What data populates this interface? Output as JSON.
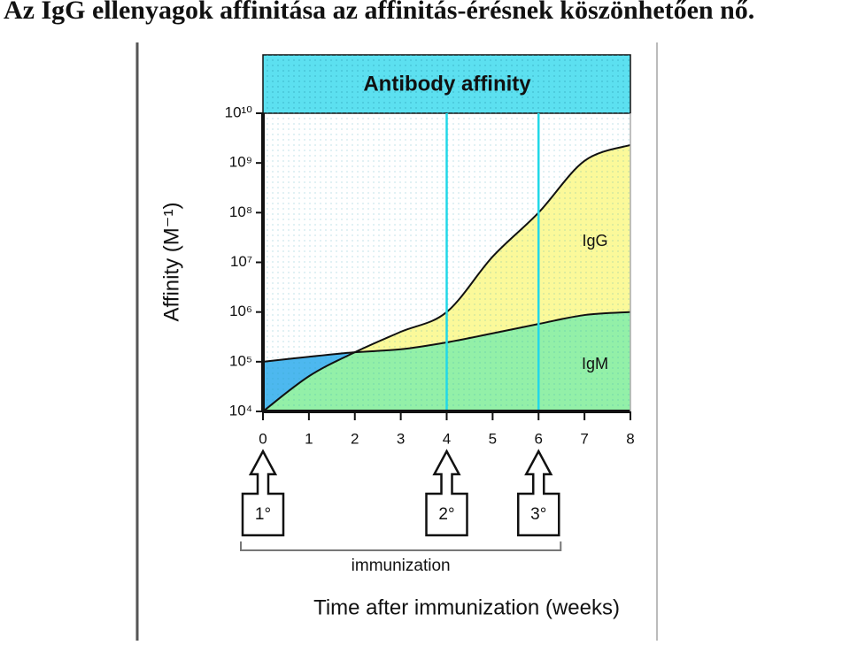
{
  "page_title": "Az IgG ellenyagok affinitása az affinitás-érésnek köszönhetően nő.",
  "chart_data": {
    "type": "area",
    "title": "Antibody affinity",
    "y_label": "Affinity (M⁻¹)",
    "x_label": "Time after immunization (weeks)",
    "x": [
      0,
      1,
      2,
      3,
      4,
      5,
      6,
      7,
      8
    ],
    "series": [
      {
        "name": "IgG",
        "color": "#fbf99a",
        "values": [
          10000,
          51000,
          155000,
          400000,
          1000000,
          13000000,
          100000000,
          1100000000,
          2300000000
        ]
      },
      {
        "name": "IgM",
        "color": "#93f0a8",
        "values": [
          100000,
          126000,
          155000,
          178000,
          245000,
          372000,
          575000,
          870000,
          1000000
        ]
      }
    ],
    "low_region_color": "#4db8ef",
    "log_y": true,
    "xlim": [
      0,
      8
    ],
    "xticks": [
      0,
      1,
      2,
      3,
      4,
      5,
      6,
      7,
      8
    ],
    "ylim": [
      10000,
      10000000000
    ],
    "yticks": [
      {
        "value": 10000,
        "label": "10⁴"
      },
      {
        "value": 100000,
        "label": "10⁵"
      },
      {
        "value": 1000000,
        "label": "10⁶"
      },
      {
        "value": 10000000,
        "label": "10⁷"
      },
      {
        "value": 100000000,
        "label": "10⁸"
      },
      {
        "value": 1000000000,
        "label": "10⁹"
      },
      {
        "value": 10000000000,
        "label": "10¹⁰"
      }
    ],
    "immunizations": [
      {
        "x": 0,
        "label": "1°"
      },
      {
        "x": 4,
        "label": "2°"
      },
      {
        "x": 6,
        "label": "3°"
      }
    ],
    "immunization_label": "immunization",
    "marker_line_color": "#22d8e8"
  }
}
